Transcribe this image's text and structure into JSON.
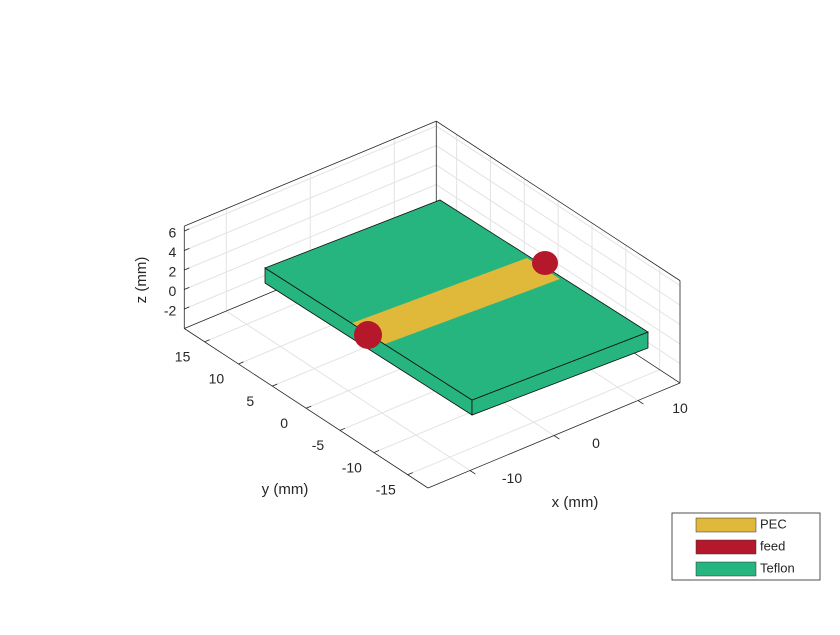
{
  "chart_data": {
    "type": "3d",
    "xlabel": "x (mm)",
    "ylabel": "y (mm)",
    "zlabel": "z (mm)",
    "xlim": [
      -15,
      15
    ],
    "ylim": [
      -18,
      18
    ],
    "zlim": [
      -4,
      6.5
    ],
    "xticks": [
      -10,
      0,
      10
    ],
    "yticks": [
      -15,
      -10,
      -5,
      0,
      5,
      10,
      15
    ],
    "zticks": [
      -2,
      0,
      2,
      4,
      6
    ],
    "grid": true,
    "legend": "lower right",
    "series": [
      {
        "name": "PEC",
        "color": "#e0b83a"
      },
      {
        "name": "feed",
        "color": "#b5182b"
      },
      {
        "name": "Teflon",
        "color": "#26b47f"
      }
    ]
  }
}
